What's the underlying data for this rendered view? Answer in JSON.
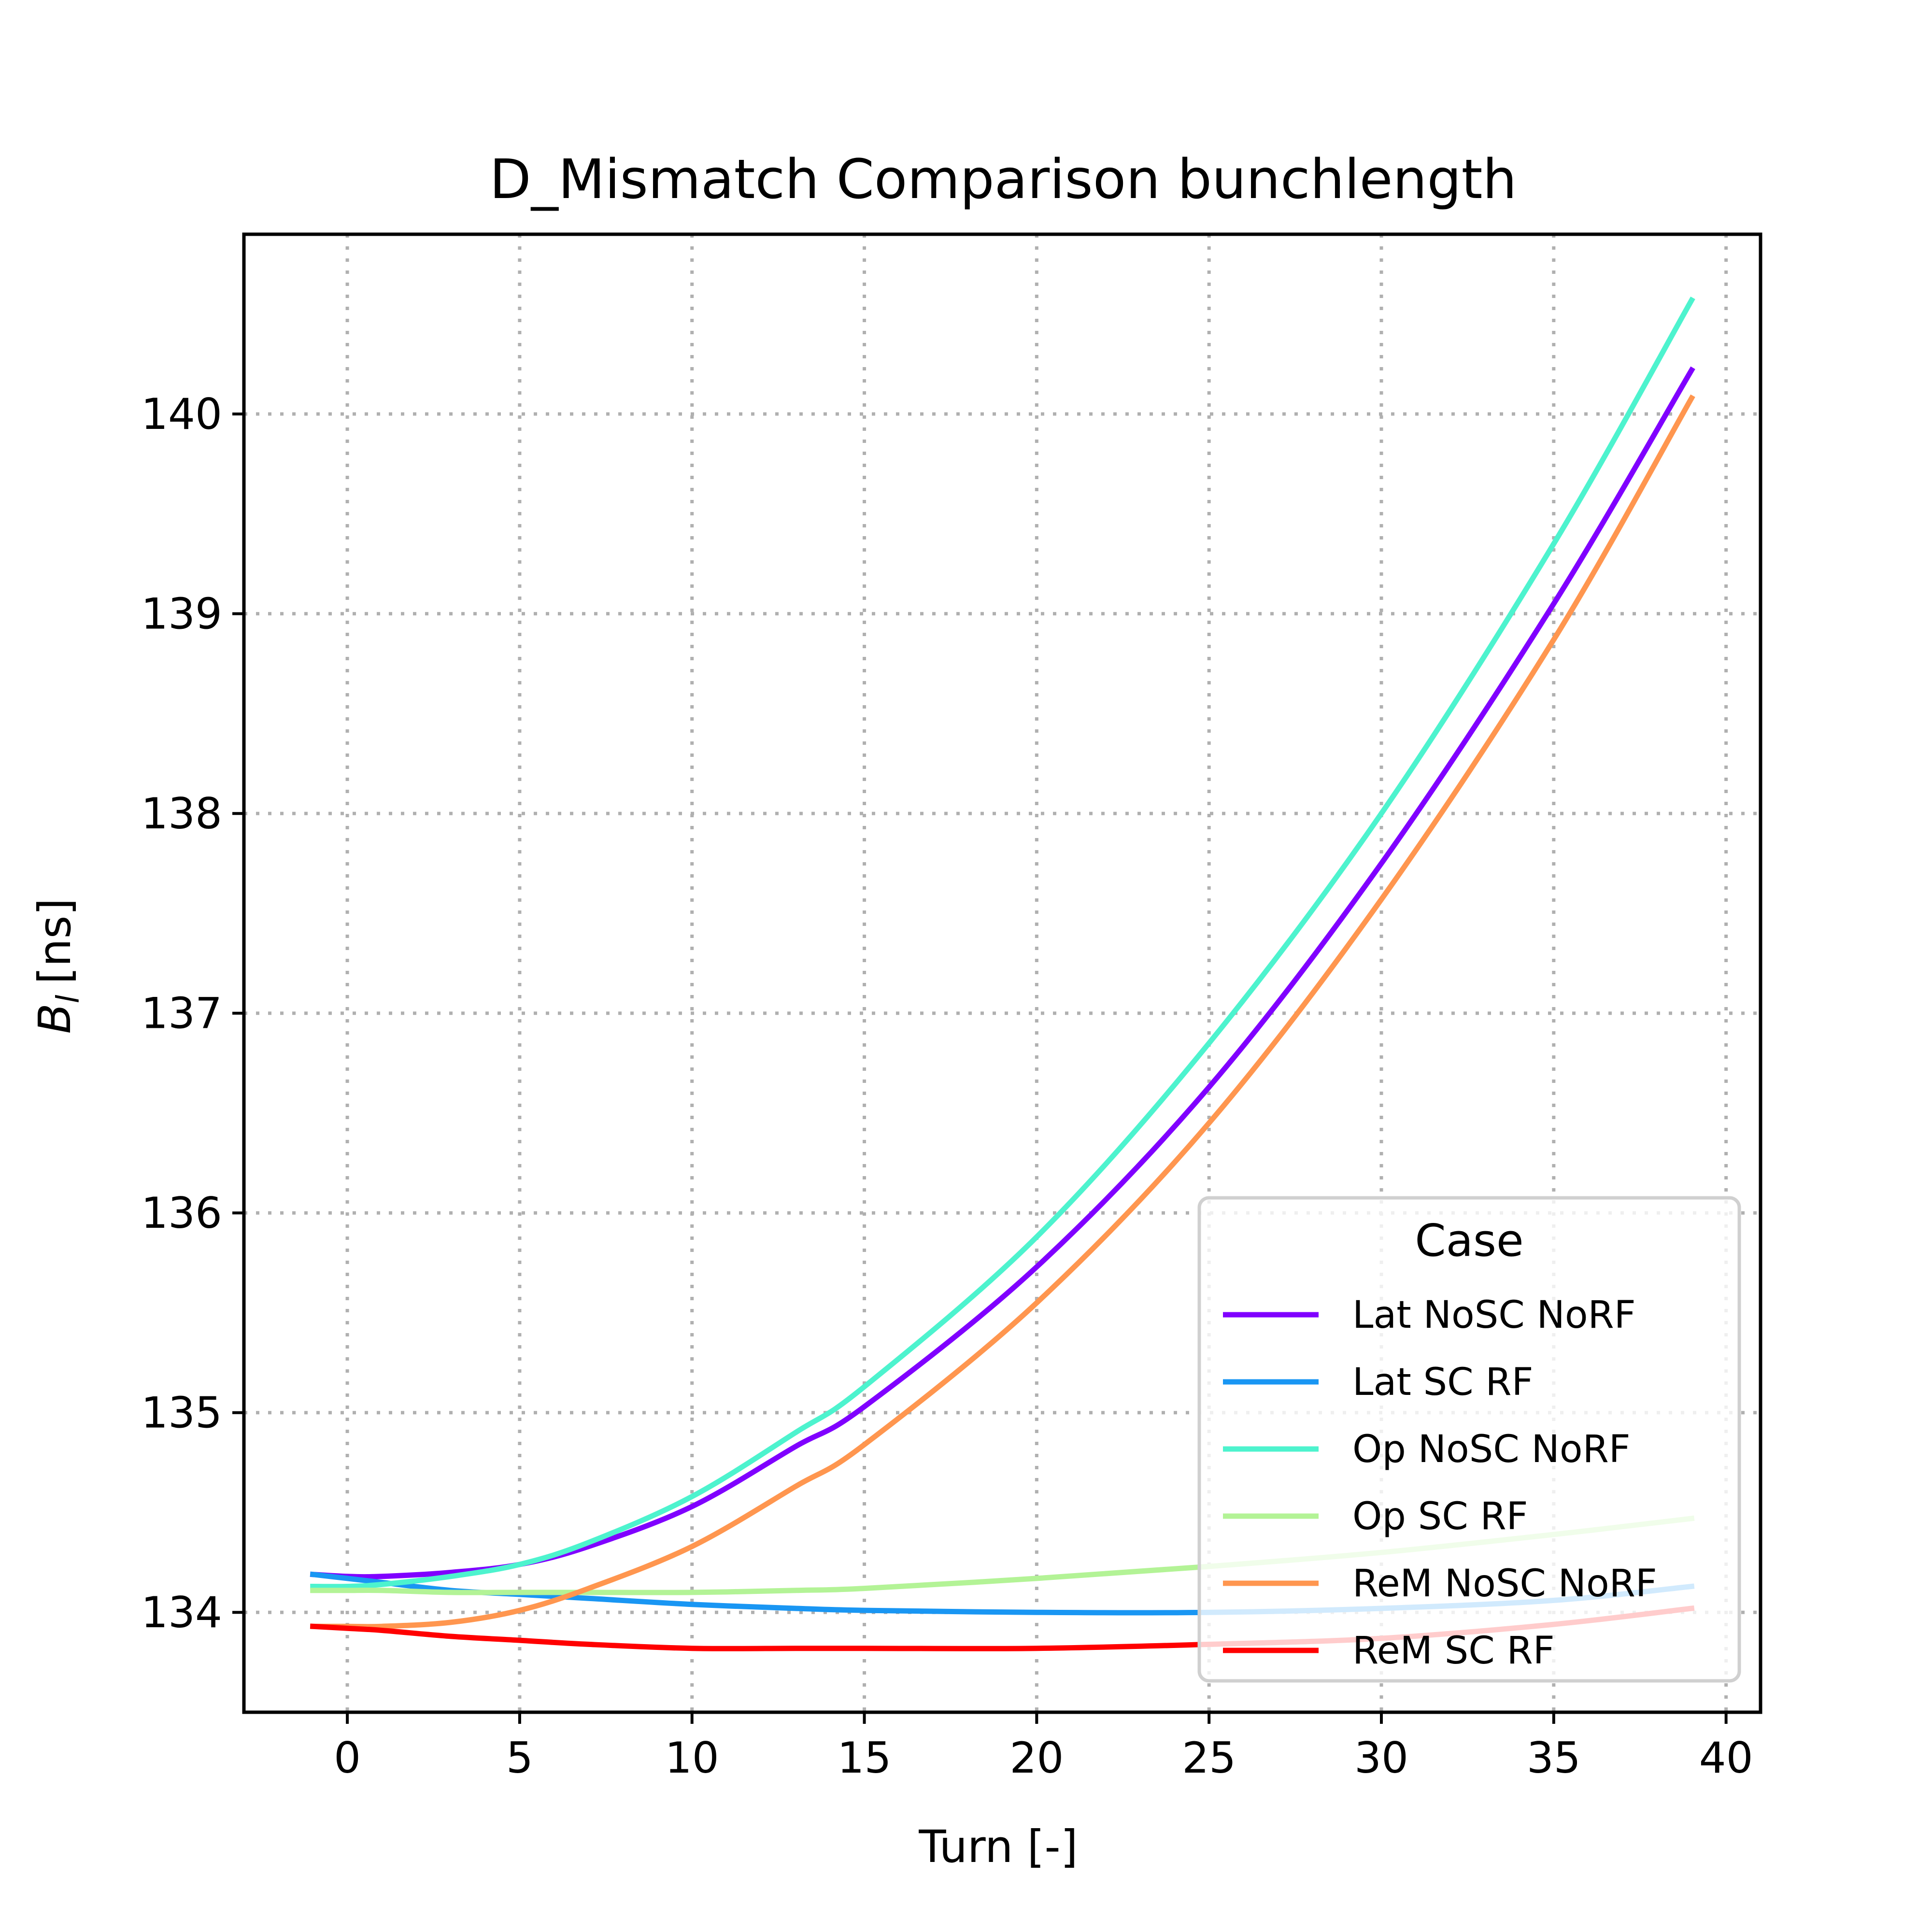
{
  "chart_data": {
    "type": "line",
    "title": "D_Mismatch Comparison bunchlength",
    "xlabel": "Turn [-]",
    "ylabel": {
      "main": "B",
      "sub": "l",
      "unit": "[ns]"
    },
    "xlim": [
      -3,
      41
    ],
    "ylim": [
      133.5,
      140.9
    ],
    "xticks": [
      0,
      5,
      10,
      15,
      20,
      25,
      30,
      35,
      40
    ],
    "yticks": [
      134,
      135,
      136,
      137,
      138,
      139,
      140
    ],
    "grid": true,
    "legend": {
      "title": "Case",
      "placement": "lower-right"
    },
    "x": [
      -1,
      0,
      1,
      3,
      5,
      7,
      10,
      13,
      15,
      20,
      25,
      30,
      35,
      39
    ],
    "series": [
      {
        "name": "Lat NoSC NoRF",
        "color": "#8000ff",
        "values": [
          134.19,
          134.18,
          134.18,
          134.2,
          134.24,
          134.33,
          134.53,
          134.83,
          135.03,
          135.73,
          136.63,
          137.75,
          139.05,
          140.22
        ]
      },
      {
        "name": "Lat SC RF",
        "color": "#1996f3",
        "values": [
          134.19,
          134.17,
          134.15,
          134.11,
          134.09,
          134.07,
          134.04,
          134.02,
          134.01,
          134.0,
          134.0,
          134.02,
          134.06,
          134.13
        ]
      },
      {
        "name": "Op NoSC NoRF",
        "color": "#4df3ce",
        "values": [
          134.13,
          134.13,
          134.14,
          134.18,
          134.24,
          134.35,
          134.58,
          134.9,
          135.13,
          135.88,
          136.85,
          138.0,
          139.35,
          140.57
        ]
      },
      {
        "name": "Op SC RF",
        "color": "#b3f396",
        "values": [
          134.11,
          134.11,
          134.11,
          134.1,
          134.1,
          134.1,
          134.1,
          134.11,
          134.12,
          134.17,
          134.23,
          134.3,
          134.39,
          134.47
        ]
      },
      {
        "name": "ReM NoSC NoRF",
        "color": "#ff964f",
        "values": [
          133.93,
          133.93,
          133.93,
          133.95,
          134.01,
          134.12,
          134.33,
          134.63,
          134.84,
          135.55,
          136.45,
          137.57,
          138.87,
          140.08
        ]
      },
      {
        "name": "ReM SC RF",
        "color": "#ff0000",
        "values": [
          133.93,
          133.92,
          133.91,
          133.88,
          133.86,
          133.84,
          133.82,
          133.82,
          133.82,
          133.82,
          133.84,
          133.87,
          133.94,
          134.02
        ]
      }
    ]
  }
}
